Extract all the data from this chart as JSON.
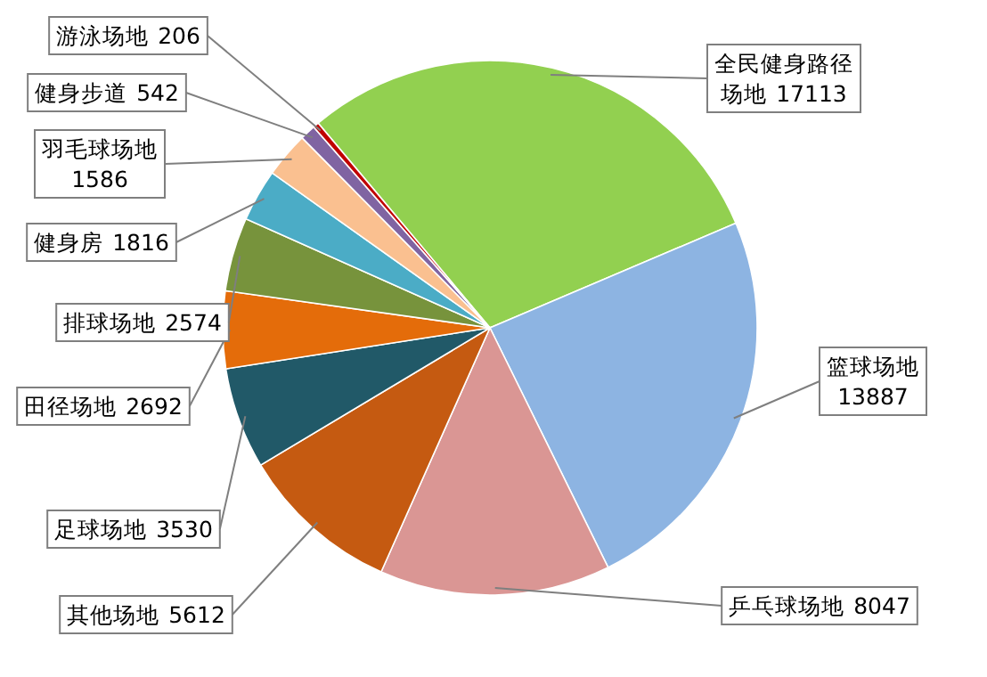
{
  "chart_data": {
    "type": "pie",
    "data_labels": true,
    "categories": [
      "全民健身路径场地",
      "篮球场地",
      "乒乓球场地",
      "其他场地",
      "足球场地",
      "田径场地",
      "排球场地",
      "健身房",
      "羽毛球场地",
      "健身步道",
      "游泳场地"
    ],
    "values": [
      17113,
      13887,
      8047,
      5612,
      3530,
      2692,
      2574,
      1816,
      1586,
      542,
      206
    ],
    "colors": [
      "#92d050",
      "#8db4e2",
      "#da9694",
      "#c55a11",
      "#215968",
      "#e46c0a",
      "#77933c",
      "#4bacc6",
      "#fac090",
      "#8064a2",
      "#c00000"
    ]
  }
}
